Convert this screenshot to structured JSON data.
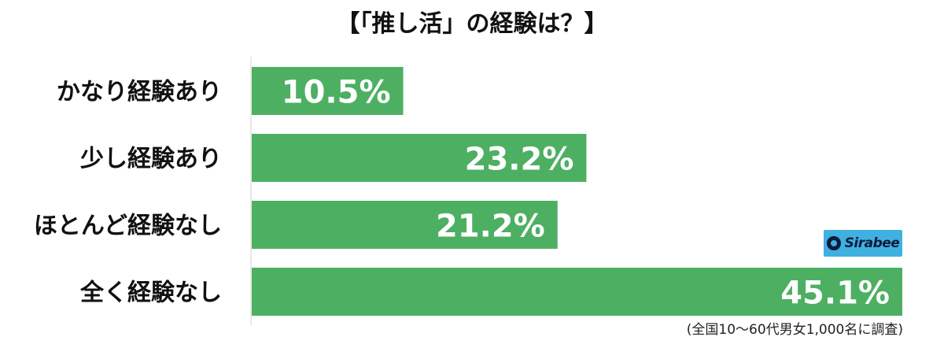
{
  "chart_data": {
    "type": "bar",
    "orientation": "horizontal",
    "title": "【「推し活」の経験は？】",
    "categories": [
      "かなり経験あり",
      "少し経験あり",
      "ほとんど経験なし",
      "全く経験なし"
    ],
    "values": [
      10.5,
      23.2,
      21.2,
      45.1
    ],
    "value_labels": [
      "10.5%",
      "23.2%",
      "21.2%",
      "45.1%"
    ],
    "unit": "%",
    "xlim": [
      0,
      45.1
    ],
    "grid": false,
    "bar_color": "#4daf62",
    "note": "(全国10〜60代男女1,000名に調査)"
  },
  "logo": {
    "text": "Sirabee",
    "background": "#3fb0e0",
    "color": "#0b1b3a"
  }
}
